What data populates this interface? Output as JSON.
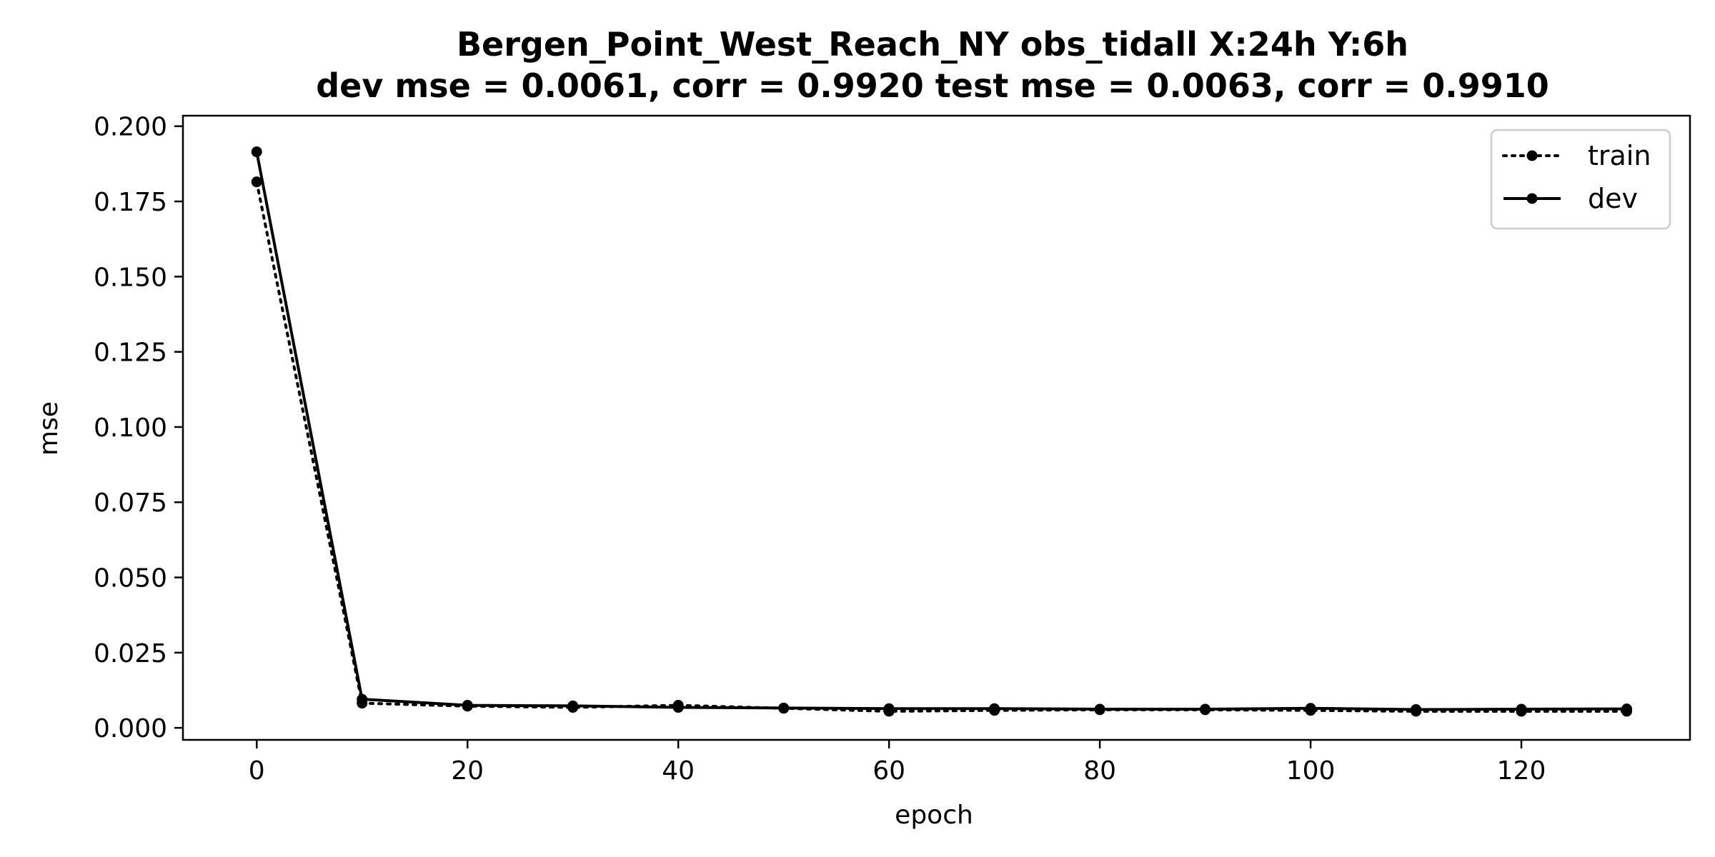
{
  "chart_data": {
    "type": "line",
    "title": "Bergen_Point_West_Reach_NY   obs_tidall   X:24h   Y:6h",
    "subtitle": "dev mse = 0.0061, corr = 0.9920   test mse = 0.0063, corr = 0.9910",
    "xlabel": "epoch",
    "ylabel": "mse",
    "xlim": [
      -7,
      136
    ],
    "ylim": [
      -0.004,
      0.2035
    ],
    "xticks": [
      0,
      20,
      40,
      60,
      80,
      100,
      120
    ],
    "xtick_labels": [
      "0",
      "20",
      "40",
      "60",
      "80",
      "100",
      "120"
    ],
    "yticks": [
      0.0,
      0.025,
      0.05,
      0.075,
      0.1,
      0.125,
      0.15,
      0.175,
      0.2
    ],
    "ytick_labels": [
      "0.000",
      "0.025",
      "0.050",
      "0.075",
      "0.100",
      "0.125",
      "0.150",
      "0.175",
      "0.200"
    ],
    "grid": false,
    "legend_position": "top-right",
    "x": [
      0,
      10,
      20,
      30,
      40,
      50,
      60,
      70,
      80,
      90,
      100,
      110,
      120,
      130
    ],
    "series": [
      {
        "name": "train",
        "style": "dotted",
        "color": "#000000",
        "values": [
          0.1815,
          0.0082,
          0.0072,
          0.0068,
          0.0075,
          0.0065,
          0.0055,
          0.0058,
          0.006,
          0.006,
          0.0058,
          0.0055,
          0.0055,
          0.0055
        ]
      },
      {
        "name": "dev",
        "style": "solid",
        "color": "#000000",
        "values": [
          0.1915,
          0.0095,
          0.0075,
          0.0073,
          0.0068,
          0.0066,
          0.0064,
          0.0064,
          0.0062,
          0.0062,
          0.0065,
          0.0061,
          0.0062,
          0.0063
        ]
      }
    ]
  }
}
